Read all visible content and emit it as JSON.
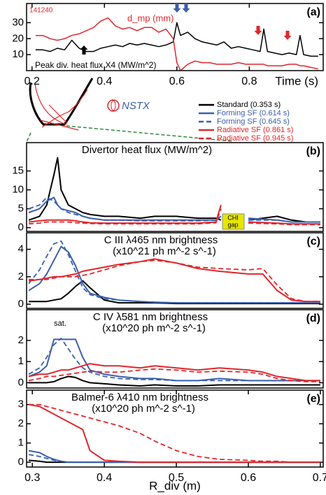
{
  "diagram": {
    "logo": "NSTX"
  },
  "chart_data": [
    {
      "type": "line",
      "shot": "141240",
      "panel_label": "(a)",
      "x_label": "Time (s)",
      "x": [
        0.21,
        0.23,
        0.25,
        0.27,
        0.29,
        0.31,
        0.33,
        0.35,
        0.37,
        0.39,
        0.41,
        0.43,
        0.45,
        0.47,
        0.49,
        0.51,
        0.53,
        0.55,
        0.57,
        0.59,
        0.6,
        0.61,
        0.63,
        0.65,
        0.67,
        0.69,
        0.71,
        0.73,
        0.75,
        0.77,
        0.79,
        0.81,
        0.83,
        0.84,
        0.85,
        0.87,
        0.89,
        0.91,
        0.93,
        0.94,
        0.95,
        0.97,
        0.99
      ],
      "series": [
        {
          "name": "Peak div. heat flux X4 (MW/m^2)",
          "color": "#000000",
          "values": [
            13,
            13,
            12,
            14,
            13,
            19,
            14,
            12,
            12,
            14,
            15,
            16,
            15,
            17,
            16,
            17,
            16,
            15,
            16,
            18,
            30,
            22,
            24,
            20,
            18,
            17,
            16,
            18,
            14,
            15,
            14,
            13,
            12,
            26,
            12,
            11,
            10,
            11,
            10,
            22,
            10,
            9,
            9
          ]
        },
        {
          "name": "d_mp (mm)",
          "color": "#e0262b",
          "values": [
            22,
            22,
            20,
            19,
            20,
            22,
            23,
            25,
            27,
            31,
            33,
            28,
            26,
            27,
            25,
            27,
            27,
            24,
            26,
            20,
            5,
            0,
            4,
            6,
            5,
            5,
            4,
            4,
            4,
            5,
            4,
            4,
            4,
            4,
            3,
            3,
            3,
            4,
            4,
            3,
            3,
            2,
            1
          ]
        }
      ],
      "xlim": [
        0.185,
        1.004
      ],
      "xticks": [
        0.2,
        0.4,
        0.6,
        0.8
      ],
      "ylim": [
        0,
        42
      ],
      "yticks": [
        10,
        20,
        30
      ]
    },
    {
      "type": "line",
      "title": "Divertor heat flux (MW/m^2)",
      "panel_label": "(b)",
      "gap_label": [
        "CHI",
        "gap"
      ],
      "x": [
        0.295,
        0.31,
        0.32,
        0.33,
        0.335,
        0.34,
        0.35,
        0.36,
        0.37,
        0.38,
        0.4,
        0.42,
        0.45,
        0.47,
        0.5,
        0.53,
        0.555,
        0.562,
        0.58,
        0.6,
        0.64,
        0.66,
        0.68,
        0.7
      ],
      "series": [
        {
          "name": "Standard (0.353 s)",
          "color": "#000000",
          "dash": false,
          "values": [
            2,
            3,
            6,
            14,
            18.5,
            10,
            6,
            5,
            4,
            3.5,
            3,
            3,
            2.5,
            3,
            3,
            2.5,
            2.5,
            2,
            null,
            2,
            3,
            2,
            1.5,
            1.5
          ]
        },
        {
          "name": "Forming SF (0.614 s)",
          "color": "#3a5fad",
          "dash": false,
          "values": [
            4,
            5,
            7,
            8,
            6,
            5,
            4.5,
            4,
            3,
            2.5,
            2,
            2,
            2,
            2,
            2,
            2,
            2,
            3,
            null,
            2.5,
            2,
            1.5,
            1.5,
            1.5
          ]
        },
        {
          "name": "Forming SF (0.645 s)",
          "color": "#3a5fad",
          "dash": true,
          "values": [
            5,
            6,
            8,
            7,
            6,
            5,
            4,
            3.5,
            3,
            2.5,
            2,
            2,
            1.8,
            1.8,
            1.8,
            1.8,
            2,
            3,
            null,
            2,
            2,
            1.5,
            1.5,
            1.5
          ]
        },
        {
          "name": "Radiative SF (0.861 s)",
          "color": "#e0262b",
          "dash": false,
          "values": [
            1.5,
            1.8,
            2,
            2,
            2,
            2,
            2,
            1.8,
            1.5,
            1.3,
            1.2,
            1.2,
            1.2,
            1.2,
            1.2,
            1.2,
            1.5,
            6,
            null,
            1.5,
            1.2,
            1,
            1,
            1
          ]
        },
        {
          "name": "Radiative SF (0.945 s)",
          "color": "#e0262b",
          "dash": true,
          "values": [
            1,
            1.2,
            1.5,
            1.5,
            1.5,
            1.5,
            1.5,
            1.3,
            1.2,
            1.1,
            1,
            1,
            1,
            1,
            1,
            1,
            1.3,
            5,
            null,
            1.2,
            1,
            0.8,
            0.8,
            0.8
          ]
        }
      ],
      "xlim": [
        0.292,
        0.704
      ],
      "ylim": [
        -1,
        22.5
      ],
      "yticks": [
        0,
        5,
        10,
        15
      ]
    },
    {
      "type": "line",
      "title": "C III λ465 nm brightness",
      "subtitle": "(x10^21 ph m^-2 s^-1)",
      "panel_label": "(c)",
      "x": [
        0.295,
        0.31,
        0.32,
        0.33,
        0.34,
        0.35,
        0.36,
        0.37,
        0.38,
        0.4,
        0.42,
        0.45,
        0.47,
        0.5,
        0.53,
        0.56,
        0.6,
        0.62,
        0.64,
        0.66,
        0.68,
        0.7
      ],
      "series": [
        {
          "color": "#000000",
          "dash": false,
          "values": [
            0.2,
            0.2,
            0.2,
            0.3,
            0.4,
            0.8,
            1.3,
            1.7,
            1.2,
            0.3,
            0.1,
            0.1,
            0.1,
            0.05,
            0.05,
            0.05,
            0.05,
            0.05,
            0.05,
            0.05,
            0.05,
            0.05
          ]
        },
        {
          "color": "#3a5fad",
          "dash": false,
          "values": [
            1,
            1.5,
            2.2,
            3.2,
            4.2,
            3.8,
            2.8,
            1.5,
            0.8,
            0.5,
            0.3,
            0.2,
            0.15,
            0.1,
            0.1,
            0.1,
            0.1,
            0.1,
            0.1,
            0.1,
            0.1,
            0.1
          ]
        },
        {
          "color": "#3a5fad",
          "dash": true,
          "values": [
            1.5,
            2.5,
            3.5,
            4.4,
            4.6,
            3.6,
            2.4,
            1.2,
            0.7,
            0.4,
            0.3,
            0.2,
            0.15,
            0.1,
            0.1,
            0.1,
            0.1,
            0.1,
            0.1,
            0.1,
            0.1,
            0.1
          ]
        },
        {
          "color": "#e0262b",
          "dash": false,
          "values": [
            1.7,
            1.8,
            1.9,
            2,
            2,
            2.1,
            2.2,
            2.4,
            2.5,
            2.7,
            2.9,
            3.1,
            3.3,
            3,
            2.6,
            2.4,
            2.2,
            2.2,
            1,
            0.3,
            0.2,
            0.2
          ]
        },
        {
          "color": "#e0262b",
          "dash": true,
          "values": [
            1.8,
            1.8,
            1.8,
            1.9,
            2,
            2,
            2,
            2.1,
            2.2,
            2.5,
            2.8,
            3.1,
            3.2,
            3,
            2.7,
            2.6,
            2.5,
            2.6,
            1.4,
            0.4,
            0.2,
            0.2
          ]
        }
      ],
      "xlim": [
        0.292,
        0.704
      ],
      "ylim": [
        -0.3,
        5.2
      ],
      "yticks": [
        0,
        2,
        4
      ]
    },
    {
      "type": "line",
      "title": "C IV λ581 nm brightness",
      "subtitle": "(x10^20 ph m^-2 s^-1)",
      "panel_label": "(d)",
      "annotation": "sat.",
      "x": [
        0.295,
        0.31,
        0.32,
        0.33,
        0.34,
        0.35,
        0.36,
        0.37,
        0.38,
        0.4,
        0.42,
        0.45,
        0.47,
        0.5,
        0.53,
        0.56,
        0.6,
        0.62,
        0.64,
        0.66,
        0.68,
        0.7
      ],
      "series": [
        {
          "color": "#000000",
          "dash": false,
          "values": [
            0,
            0,
            0,
            0.05,
            0.2,
            0.3,
            0.25,
            0.1,
            0,
            -0.05,
            -0.1,
            -0.15,
            -0.1,
            -0.15,
            -0.15,
            -0.1,
            -0.1,
            -0.1,
            -0.1,
            -0.1,
            -0.1,
            -0.1
          ]
        },
        {
          "color": "#3a5fad",
          "dash": false,
          "values": [
            0.3,
            0.5,
            0.8,
            2.05,
            2.05,
            2.05,
            2.05,
            1.2,
            0.6,
            0.4,
            0.3,
            0.2,
            0.2,
            0.1,
            0.1,
            0.2,
            0.1,
            0.1,
            0.1,
            0.1,
            0.1,
            0.1
          ]
        },
        {
          "color": "#3a5fad",
          "dash": true,
          "values": [
            0.4,
            0.7,
            1.2,
            1.8,
            2.1,
            1.6,
            1.1,
            0.7,
            0.5,
            0.3,
            0.2,
            0.15,
            0.15,
            0.1,
            0.1,
            0.1,
            0.1,
            0.1,
            0.1,
            0.1,
            0.1,
            0.1
          ]
        },
        {
          "color": "#e0262b",
          "dash": false,
          "values": [
            0.3,
            0.4,
            0.4,
            0.5,
            0.6,
            0.6,
            0.7,
            0.8,
            0.9,
            0.8,
            0.8,
            0.7,
            0.8,
            0.7,
            0.6,
            0.7,
            0.6,
            0.5,
            0.3,
            0.2,
            0.1,
            0.1
          ]
        },
        {
          "color": "#e0262b",
          "dash": true,
          "values": [
            0.1,
            0.2,
            0.3,
            0.3,
            0.35,
            0.4,
            0.45,
            0.5,
            0.55,
            0.5,
            0.5,
            0.6,
            0.65,
            0.6,
            0.5,
            0.55,
            0.5,
            0.4,
            0.2,
            0.1,
            0.05,
            0.05
          ]
        }
      ],
      "xlim": [
        0.292,
        0.704
      ],
      "ylim": [
        -0.25,
        3.45
      ],
      "yticks": [
        0,
        1,
        2
      ]
    },
    {
      "type": "line",
      "title": "Balmer-6 λ410 nm brightness",
      "subtitle": "(x10^20 ph m^-2 s^-1)",
      "panel_label": "(e)",
      "x_label": "R_div (m)",
      "x": [
        0.295,
        0.31,
        0.32,
        0.33,
        0.34,
        0.35,
        0.36,
        0.37,
        0.38,
        0.4,
        0.42,
        0.45,
        0.47,
        0.5,
        0.53,
        0.56,
        0.6,
        0.62,
        0.64,
        0.66,
        0.68,
        0.7
      ],
      "series": [
        {
          "color": "#000000",
          "dash": false,
          "values": [
            0.1,
            0.05,
            0,
            0,
            0,
            0,
            0,
            0,
            0,
            0,
            0,
            0,
            0,
            0,
            0,
            0,
            0,
            0,
            0,
            0,
            0,
            0
          ]
        },
        {
          "color": "#3a5fad",
          "dash": false,
          "values": [
            0.6,
            0.5,
            0.3,
            0.15,
            0.05,
            0,
            0,
            0,
            0,
            0,
            0,
            0,
            0,
            0,
            0,
            0,
            0,
            0,
            0,
            0,
            0,
            0
          ]
        },
        {
          "color": "#3a5fad",
          "dash": true,
          "values": [
            0.4,
            0.3,
            0.2,
            0.1,
            0.05,
            0,
            0,
            0,
            0,
            0,
            0,
            0,
            0,
            0,
            0,
            0,
            0,
            0,
            0,
            0,
            0,
            0
          ]
        },
        {
          "color": "#e0262b",
          "dash": false,
          "values": [
            3,
            2.9,
            2.7,
            2.5,
            2.3,
            2.1,
            1.9,
            1.7,
            0.6,
            0.1,
            0.05,
            0,
            0,
            0,
            0,
            0,
            0,
            0,
            0,
            0,
            0,
            0
          ]
        },
        {
          "color": "#e0262b",
          "dash": true,
          "values": [
            3,
            3,
            2.9,
            2.8,
            2.7,
            2.6,
            2.5,
            2.4,
            2.3,
            2.1,
            1.9,
            1.5,
            1.1,
            0.6,
            0.3,
            0.15,
            0.1,
            0.05,
            0.05,
            0,
            0,
            0
          ]
        }
      ],
      "xlim": [
        0.292,
        0.704
      ],
      "xticks": [
        0.3,
        0.4,
        0.5,
        0.6,
        0.7
      ],
      "ylim": [
        -0.25,
        3.75
      ],
      "yticks": [
        0,
        1,
        2,
        3
      ]
    }
  ]
}
